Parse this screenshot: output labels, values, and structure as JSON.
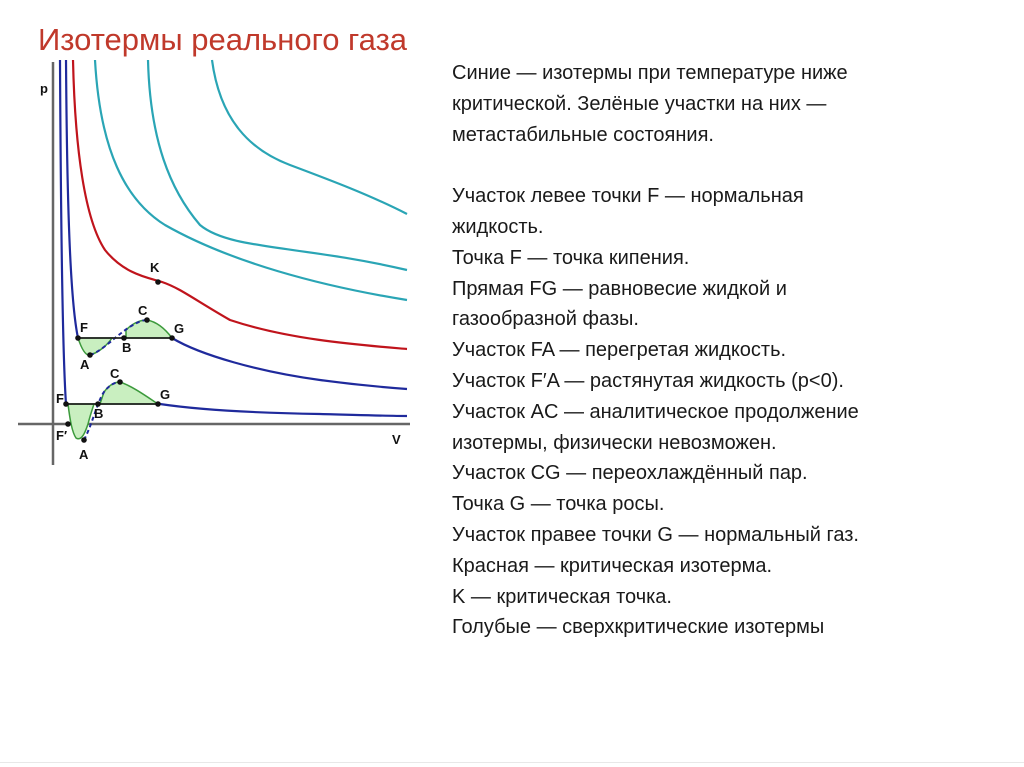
{
  "title": "Изотермы реального газа",
  "diagram": {
    "axis_p": "p",
    "axis_v": "V",
    "points": {
      "K": "K",
      "F_upper": "F",
      "B_upper": "B",
      "C_upper": "C",
      "G_upper": "G",
      "A_upper": "A",
      "F_lower": "F",
      "B_lower": "B",
      "C_lower": "C",
      "G_lower": "G",
      "F_prime": "F′",
      "A_lower": "A"
    },
    "colors": {
      "supercritical": "#2aa5b5",
      "critical": "#c0141c",
      "subcritical": "#1f2a9c",
      "metastable_fill": "#c9efc0",
      "metastable_stroke": "#3c9a3c",
      "axis": "#666666"
    }
  },
  "notes": [
    "Синие — изотермы при температуре ниже",
    "критической. Зелёные участки на них —",
    "метастабильные состояния.",
    "",
    "Участок левее точки F — нормальная",
    "жидкость.",
    "Точка F — точка кипения.",
    "Прямая FG — равновесие жидкой и",
    "газообразной фазы.",
    "Участок FA — перегретая жидкость.",
    "Участок F′A — растянутая жидкость (p<0).",
    "Участок AC — аналитическое продолжение",
    "изотермы, физически невозможен.",
    "Участок CG — переохлаждённый пар.",
    "Точка G — точка росы.",
    "Участок правее точки G — нормальный газ.",
    "Красная — критическая изотерма.",
    "K — критическая точка.",
    "Голубые — сверхкритические изотермы"
  ]
}
